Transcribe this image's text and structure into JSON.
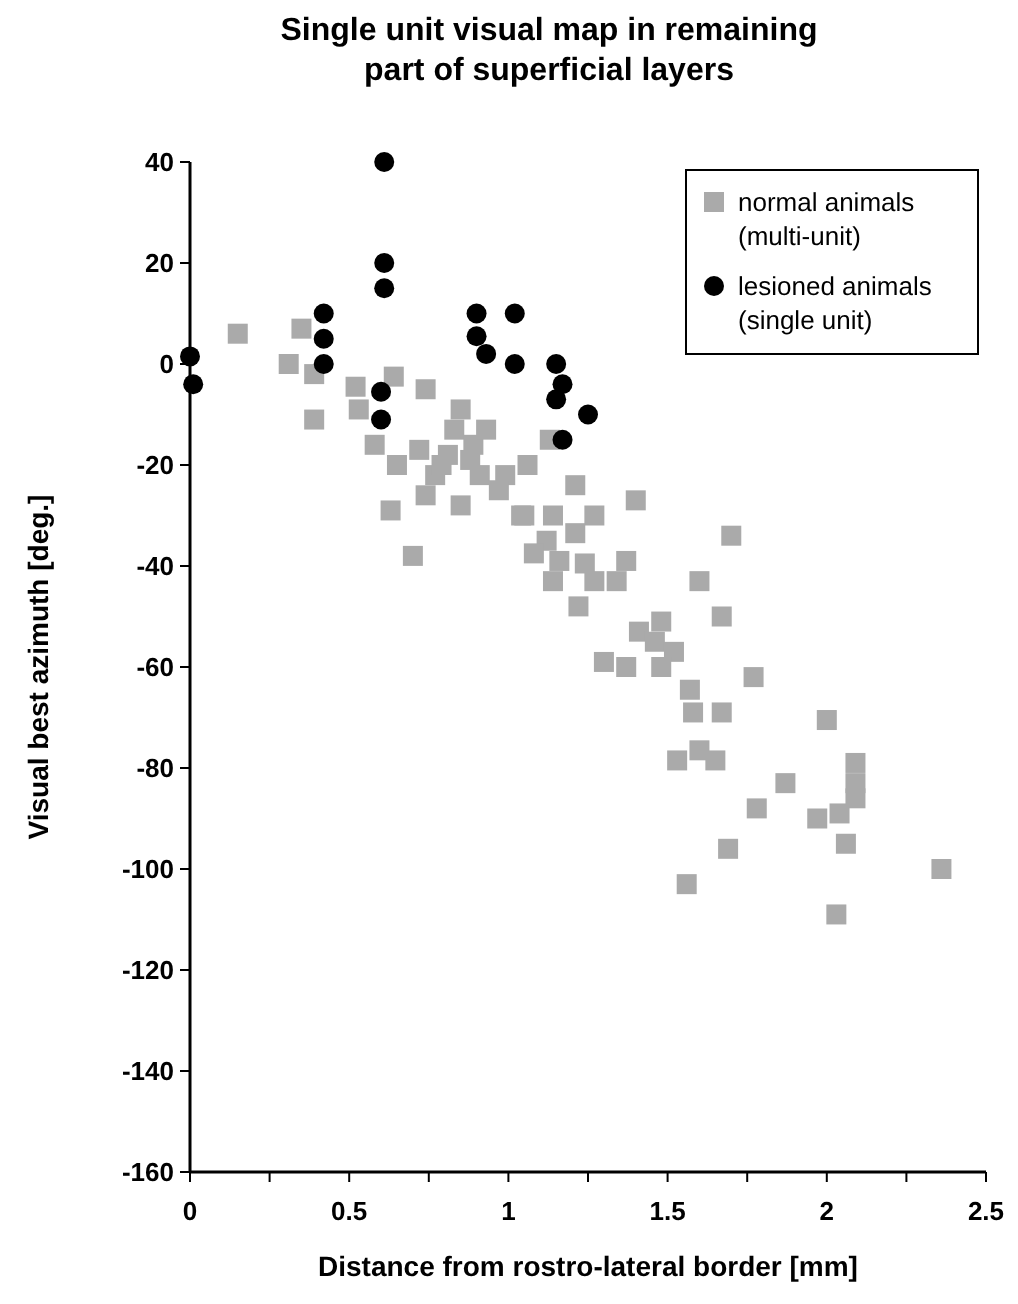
{
  "chart_data": {
    "type": "scatter",
    "title": "Single unit visual map in remaining\npart of superficial layers",
    "xlabel": "Distance from rostro-lateral border [mm]",
    "ylabel": "Visual best azimuth [deg.]",
    "xlim": [
      0,
      2.5
    ],
    "ylim": [
      -160,
      40
    ],
    "xticks": [
      0,
      {
        "value": 0.25,
        "label": null
      },
      0.5,
      {
        "value": 0.75,
        "label": null
      },
      1,
      {
        "value": 1.25,
        "label": null
      },
      1.5,
      {
        "value": 1.75,
        "label": null
      },
      2,
      {
        "value": 2.25,
        "label": null
      },
      2.5
    ],
    "yticks": [
      -160,
      -140,
      -120,
      -100,
      -80,
      -60,
      -40,
      -20,
      0,
      20,
      40
    ],
    "grid": false,
    "legend": "top right",
    "series": [
      {
        "name": "normal animals\n(multi-unit)",
        "color": "#aaaaaa",
        "marker": "square",
        "x": [
          0.15,
          0.35,
          0.31,
          0.39,
          0.39,
          0.52,
          0.53,
          0.64,
          0.74,
          0.58,
          0.63,
          0.65,
          0.72,
          0.74,
          0.77,
          0.85,
          0.83,
          0.81,
          0.85,
          0.89,
          0.93,
          0.91,
          0.99,
          1.06,
          1.04,
          1.13,
          0.7,
          0.79,
          0.88,
          0.97,
          1.12,
          1.21,
          1.4,
          1.05,
          1.14,
          1.27,
          1.21,
          1.7,
          1.08,
          1.16,
          1.24,
          1.37,
          1.14,
          1.27,
          1.34,
          1.22,
          1.6,
          1.67,
          1.48,
          1.41,
          1.46,
          1.52,
          1.3,
          1.37,
          1.48,
          1.77,
          1.57,
          1.58,
          1.67,
          2.0,
          1.53,
          1.6,
          1.65,
          1.87,
          2.09,
          2.09,
          2.09,
          2.04,
          1.97,
          1.78,
          1.69,
          2.06,
          2.36,
          1.56,
          2.03
        ],
        "values": [
          6,
          7,
          0,
          -2,
          -11,
          -4.5,
          -9,
          -2.5,
          -5,
          -16,
          -29,
          -20,
          -17,
          -26,
          -22,
          -9,
          -13,
          -18,
          -28,
          -16,
          -13,
          -22,
          -22,
          -20,
          -30,
          -15,
          -38,
          -20,
          -19,
          -25,
          -35,
          -24,
          -27,
          -30,
          -30,
          -30,
          -33.5,
          -34,
          -37.5,
          -39,
          -39.5,
          -39,
          -43,
          -43,
          -43,
          -48,
          -43,
          -50,
          -51,
          -53,
          -55,
          -57,
          -59,
          -60,
          -60,
          -62,
          -64.5,
          -69,
          -69,
          -70.5,
          -78.5,
          -76.5,
          -78.5,
          -83,
          -79,
          -83,
          -86,
          -89,
          -90,
          -88,
          -96,
          -95,
          -100,
          -103,
          -109
        ]
      },
      {
        "name": "lesioned animals\n(single unit)",
        "color": "#000000",
        "marker": "circle",
        "x": [
          0,
          0.01,
          0.42,
          0.42,
          0.42,
          0.61,
          0.61,
          0.61,
          0.6,
          0.6,
          0.9,
          0.9,
          0.93,
          1.02,
          1.02,
          1.15,
          1.17,
          1.15,
          1.17,
          1.25
        ],
        "values": [
          1.5,
          -4,
          10,
          5,
          0,
          40,
          20,
          15,
          -5.5,
          -11,
          10,
          5.5,
          2,
          10,
          0,
          0,
          -4,
          -7,
          -15,
          -10
        ]
      }
    ]
  }
}
